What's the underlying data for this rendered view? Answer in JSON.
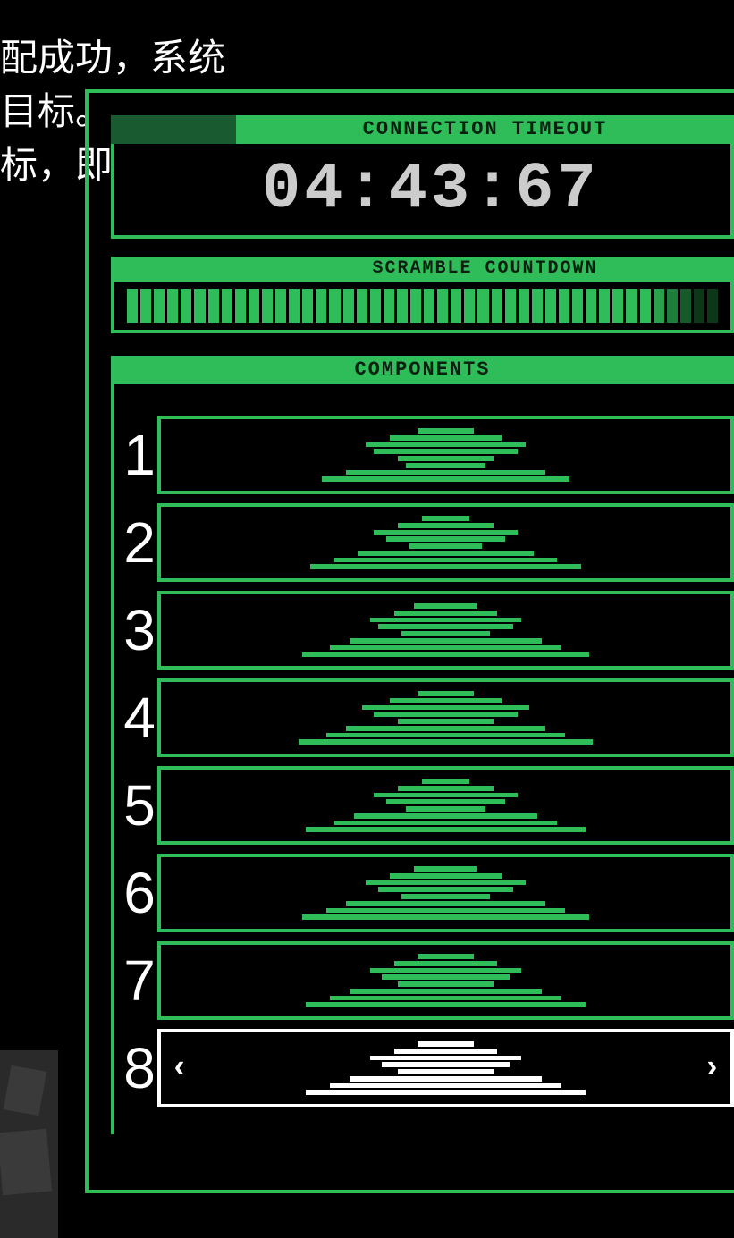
{
  "colors": {
    "bg": "#000000",
    "green_bright": "#2fbd5a",
    "green_dark": "#1a5a30",
    "green_text_bg": "#0a2010",
    "white": "#ffffff",
    "gray": "#cccccc",
    "dim_gray": "#2a2a2a"
  },
  "hint_lines": [
    "配成功，系统",
    "目标。",
    "标，即可绕过"
  ],
  "timeout": {
    "header": "CONNECTION TIMEOUT",
    "value": "04:43:67"
  },
  "scramble": {
    "header": "SCRAMBLE COUNTDOWN",
    "segments": 44,
    "filled_ratio": 0.88,
    "full_color": "#2fbd5a",
    "fade_colors": [
      "#2fbd5a",
      "#28a04c",
      "#1f7d3b",
      "#165a2a",
      "#0d3719"
    ]
  },
  "components": {
    "header": "COMPONENTS",
    "rows": [
      {
        "num": "1",
        "selected": false,
        "color": "#2fbd5a",
        "widths": [
          14,
          28,
          40,
          36,
          24,
          20,
          50,
          62
        ]
      },
      {
        "num": "2",
        "selected": false,
        "color": "#2fbd5a",
        "widths": [
          12,
          24,
          36,
          30,
          18,
          44,
          56,
          68
        ]
      },
      {
        "num": "3",
        "selected": false,
        "color": "#2fbd5a",
        "widths": [
          16,
          26,
          38,
          34,
          22,
          48,
          58,
          72
        ]
      },
      {
        "num": "4",
        "selected": false,
        "color": "#2fbd5a",
        "widths": [
          14,
          28,
          42,
          36,
          24,
          50,
          60,
          74
        ]
      },
      {
        "num": "5",
        "selected": false,
        "color": "#2fbd5a",
        "widths": [
          12,
          24,
          36,
          30,
          20,
          46,
          56,
          70
        ]
      },
      {
        "num": "6",
        "selected": false,
        "color": "#2fbd5a",
        "widths": [
          16,
          28,
          40,
          34,
          22,
          50,
          60,
          72
        ]
      },
      {
        "num": "7",
        "selected": false,
        "color": "#2fbd5a",
        "widths": [
          14,
          26,
          38,
          32,
          24,
          48,
          58,
          70
        ]
      },
      {
        "num": "8",
        "selected": true,
        "color": "#ffffff",
        "widths": [
          14,
          26,
          38,
          32,
          24,
          48,
          58,
          70
        ]
      }
    ]
  },
  "arrows": {
    "left": "‹",
    "right": "›"
  }
}
